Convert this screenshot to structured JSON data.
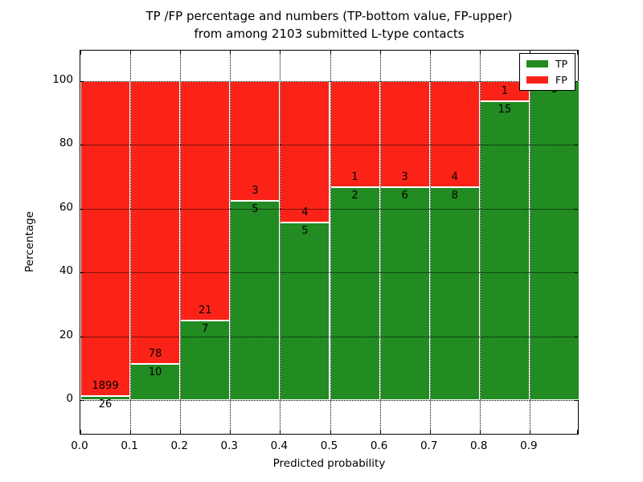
{
  "chart_data": {
    "type": "bar",
    "stacked": true,
    "title_line1": "TP /FP percentage and numbers (TP-bottom value, FP-upper)",
    "title_line2": "from among 2103 submitted L-type contacts",
    "xlabel": "Predicted probability",
    "ylabel": "Percentage",
    "bin_width": 0.1,
    "categories": [
      "0.0-0.1",
      "0.1-0.2",
      "0.2-0.3",
      "0.3-0.4",
      "0.4-0.5",
      "0.5-0.6",
      "0.6-0.7",
      "0.7-0.8",
      "0.8-0.9",
      "0.9-1.0"
    ],
    "series": [
      {
        "name": "TP",
        "color": "#228b22",
        "counts": [
          26,
          10,
          7,
          5,
          5,
          2,
          6,
          8,
          15,
          5
        ],
        "percentages": [
          1.35,
          11.36,
          25.0,
          62.5,
          55.56,
          66.67,
          66.67,
          66.67,
          93.75,
          100.0
        ]
      },
      {
        "name": "FP",
        "color": "#fb2318",
        "counts": [
          1899,
          78,
          21,
          3,
          4,
          1,
          3,
          4,
          1,
          0
        ],
        "percentages": [
          98.65,
          88.64,
          75.0,
          37.5,
          44.44,
          33.33,
          33.33,
          33.33,
          6.25,
          0.0
        ]
      }
    ],
    "annotation_note": "TP-bottom value, FP-upper",
    "total_submitted": 2103,
    "xticks": [
      "0.0",
      "0.1",
      "0.2",
      "0.3",
      "0.4",
      "0.5",
      "0.6",
      "0.7",
      "0.8",
      "0.9"
    ],
    "yticks": [
      0,
      20,
      40,
      60,
      80,
      100
    ],
    "xlim": [
      0.0,
      1.0
    ],
    "ylim": [
      -11,
      110
    ],
    "grid": "dotted",
    "bar_edge_color": "#ffffff",
    "legend": {
      "position": "upper right",
      "entries": [
        {
          "label": "TP",
          "color": "#228b22"
        },
        {
          "label": "FP",
          "color": "#fb2318"
        }
      ]
    }
  }
}
